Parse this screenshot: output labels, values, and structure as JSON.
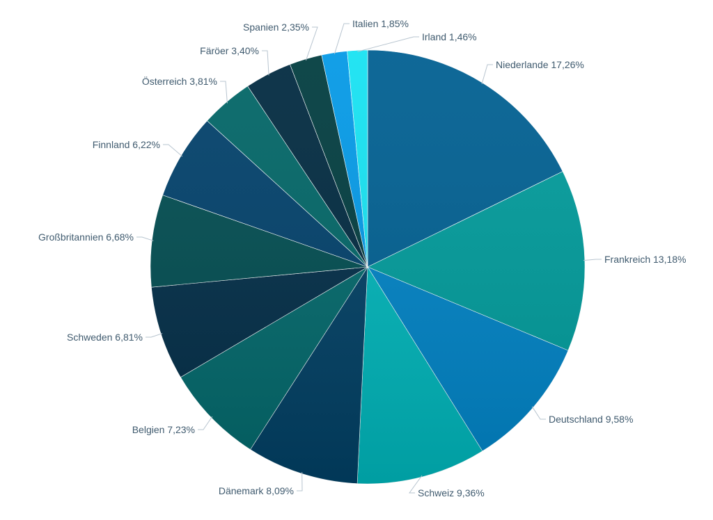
{
  "chart_data": {
    "type": "pie",
    "title": "",
    "legend": "none",
    "slices": [
      {
        "label": "Niederlande",
        "value": 17.26,
        "display": "Niederlande 17,26%",
        "color": "#005f91"
      },
      {
        "label": "Frankreich",
        "value": 13.18,
        "display": "Frankreich 13,18%",
        "color": "#009a9a"
      },
      {
        "label": "Deutschland",
        "value": 9.58,
        "display": "Deutschland 9,58%",
        "color": "#0082c4"
      },
      {
        "label": "Schweiz",
        "value": 9.36,
        "display": "Schweiz 9,36%",
        "color": "#00b3b8"
      },
      {
        "label": "Dänemark",
        "value": 8.09,
        "display": "Dänemark 8,09%",
        "color": "#013f63"
      },
      {
        "label": "Belgien",
        "value": 7.23,
        "display": "Belgien 7,23%",
        "color": "#02676a"
      },
      {
        "label": "Schweden",
        "value": 6.81,
        "display": "Schweden 6,81%",
        "color": "#022d47"
      },
      {
        "label": "Großbritannien",
        "value": 6.68,
        "display": "Großbritannien 6,68%",
        "color": "#014c50"
      },
      {
        "label": "Finnland",
        "value": 6.22,
        "display": "Finnland 6,22%",
        "color": "#01406a"
      },
      {
        "label": "Österreich",
        "value": 3.81,
        "display": "Österreich 3,81%",
        "color": "#016566"
      },
      {
        "label": "Färöer",
        "value": 3.4,
        "display": "Färöer 3,40%",
        "color": "#012a40"
      },
      {
        "label": "Spanien",
        "value": 2.35,
        "display": "Spanien 2,35%",
        "color": "#013c3f"
      },
      {
        "label": "Italien",
        "value": 1.85,
        "display": "Italien 1,85%",
        "color": "#0499e6"
      },
      {
        "label": "Irland",
        "value": 1.46,
        "display": "Irland 1,46%",
        "color": "#16e2f2"
      }
    ]
  }
}
